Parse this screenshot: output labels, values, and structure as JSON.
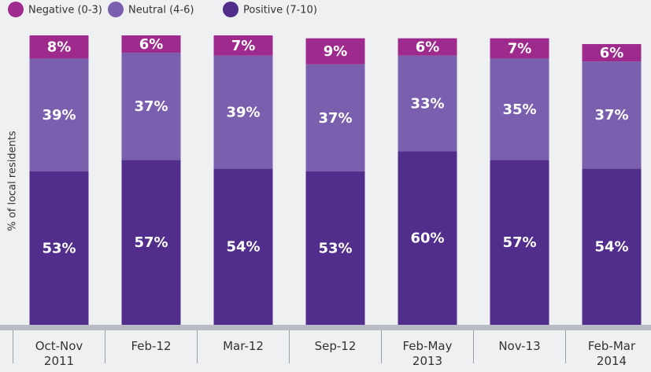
{
  "chart_data": {
    "type": "stacked_bar",
    "y_label": "% of local residents",
    "categories": [
      "Oct-Nov 2011",
      "Feb-12",
      "Mar-12",
      "Sep-12",
      "Feb-May 2013",
      "Nov-13",
      "Feb-Mar 2014"
    ],
    "series": [
      {
        "name": "Positive (7-10)",
        "color": "#512d8c",
        "values": [
          53,
          57,
          54,
          53,
          60,
          57,
          54
        ],
        "value_labels": [
          "53%",
          "57%",
          "54%",
          "53%",
          "60%",
          "57%",
          "54%"
        ]
      },
      {
        "name": "Neutral (4-6)",
        "color": "#7a5fae",
        "values": [
          39,
          37,
          39,
          37,
          33,
          35,
          37
        ],
        "value_labels": [
          "39%",
          "37%",
          "39%",
          "37%",
          "33%",
          "35%",
          "37%"
        ]
      },
      {
        "name": "Negative (0-3)",
        "color": "#9e2a8e",
        "values": [
          8,
          6,
          7,
          9,
          6,
          7,
          6
        ],
        "value_labels": [
          "8%",
          "6%",
          "7%",
          "9%",
          "6%",
          "7%",
          "6%"
        ]
      }
    ],
    "legend_order": [
      "Negative (0-3)",
      "Neutral (4-6)",
      "Positive (7-10)"
    ],
    "ylim": [
      0,
      100
    ]
  }
}
